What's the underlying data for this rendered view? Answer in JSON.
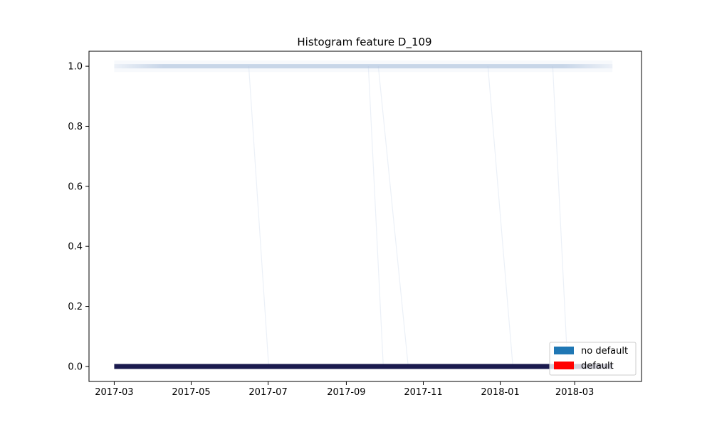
{
  "colors": {
    "no_default": "#1f77b4",
    "default": "#ff0000",
    "dense_band": "#1a1a4e"
  },
  "chart_data": {
    "type": "area",
    "title": "Histogram feature D_109",
    "xlabel": "",
    "ylabel": "",
    "xlim": [
      "2017-02-09",
      "2018-04-23"
    ],
    "ylim": [
      -0.05,
      1.05
    ],
    "grid": false,
    "x_ticks": [
      "2017-03",
      "2017-05",
      "2017-07",
      "2017-09",
      "2017-11",
      "2018-01",
      "2018-03"
    ],
    "y_ticks": [
      "0.0",
      "0.2",
      "0.4",
      "0.6",
      "0.8",
      "1.0"
    ],
    "legend": {
      "placement": "lower-right",
      "entries": [
        {
          "label": "no default",
          "color": "#1f77b4"
        },
        {
          "label": "default",
          "color": "#ff0000"
        }
      ]
    },
    "x_range": [
      "2017-03-01",
      "2018-03-31"
    ],
    "series": [
      {
        "name": "no default",
        "value_low": 0.0,
        "value_high": 1.0
      }
    ]
  }
}
